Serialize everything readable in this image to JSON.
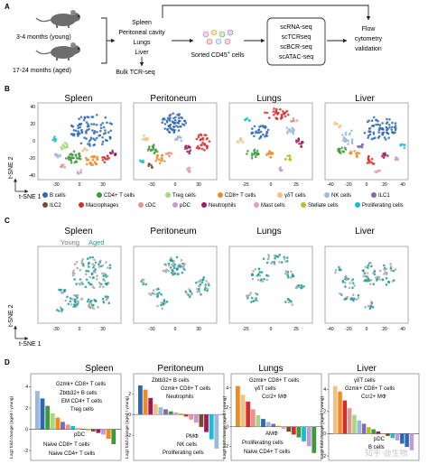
{
  "panels": {
    "A": "A",
    "B": "B",
    "C": "C",
    "D": "D"
  },
  "panel_a": {
    "mouse_young": "3-4 months (young)",
    "mouse_aged": "17-24 months (aged)",
    "tissues": [
      "Spleen",
      "Peritoneal cavity",
      "Lungs",
      "Liver"
    ],
    "bulk": "Bulk TCR-seq",
    "sorted_prefix": "Sorted CD45",
    "sorted_sup": "+",
    "sorted_suffix": " cells",
    "seq": [
      "scRNA-seq",
      "scTCRseq",
      "scBCR-seq",
      "scATAC-seq"
    ],
    "flow": [
      "Flow",
      "cytometry",
      "validation"
    ]
  },
  "tsne": {
    "ylabel": "t-SNE 2",
    "xlabel": "t-SNE 1"
  },
  "tissues": [
    "Spleen",
    "Peritoneum",
    "Lungs",
    "Liver"
  ],
  "axis_ticks": {
    "spleen_x": [
      "-30",
      "0",
      "30"
    ],
    "spleen_y": [
      "40",
      "20",
      "0",
      "-20",
      "-40"
    ],
    "peritoneum_x": [
      "-30",
      "0",
      "30"
    ],
    "lungs_x": [
      "-25",
      "0",
      "25"
    ],
    "liver_x": [
      "-40",
      "-20",
      "0",
      "20",
      "40"
    ],
    "spleen_c_x": [
      "-30",
      "0",
      "30"
    ],
    "peritoneum_c_x": [
      "-30",
      "0",
      "30"
    ],
    "lungs_c_x": [
      "-25",
      "0",
      "25"
    ],
    "liver_c_x": [
      "-40",
      "-20",
      "0",
      "20",
      "40"
    ]
  },
  "legend_b": [
    {
      "label": "B cells",
      "color": "#2f67b5"
    },
    {
      "label": "CD4+ T cells",
      "color": "#3c9a3a"
    },
    {
      "label": "Treg cells",
      "color": "#a6d77f"
    },
    {
      "label": "CD8+ T cells",
      "color": "#f08a24"
    },
    {
      "label": "γδT cells",
      "color": "#f6bf82"
    },
    {
      "label": "NK cells",
      "color": "#9ab9dc"
    },
    {
      "label": "ILC1",
      "color": "#7f6ab0"
    },
    {
      "label": "ILC2",
      "color": "#7a4a2a"
    },
    {
      "label": "Macrophages",
      "color": "#d72c2c"
    },
    {
      "label": "cDC",
      "color": "#e9928f"
    },
    {
      "label": "pDC",
      "color": "#c39bd3"
    },
    {
      "label": "Neutrophils",
      "color": "#a01a5a"
    },
    {
      "label": "Mast cells",
      "color": "#e59ac2"
    },
    {
      "label": "Stellate cells",
      "color": "#bcbd22"
    },
    {
      "label": "Proliferating cells",
      "color": "#17becf"
    }
  ],
  "legend_c": {
    "young": "Young",
    "aged": "Aged",
    "young_color": "#a8a8a8",
    "aged_color": "#1b9c9c"
  },
  "panel_d": {
    "ylabel": "Log2 fold change (aged / young)",
    "y_ticks": [
      "4",
      "2",
      "0",
      "-2"
    ],
    "annotations": {
      "spleen": [
        "Gzmk+ CD8+ T cells",
        "Zbtb32+ B cells",
        "EM CD4+ T cells",
        "Treg cells",
        "pDC",
        "Naive CD8+ T cells",
        "Naive CD4+ T cells"
      ],
      "peritoneum": [
        "Zbtb32+ B cells",
        "Gzmk+ CD8+ T cells",
        "Neutrophils",
        "PMΦ",
        "NK cells",
        "Proliferating cells"
      ],
      "lungs": [
        "Gzmk+ CD8+ T cells",
        "γδT cells",
        "Ccr2+ MΦ",
        "AMΦ",
        "Proliferating cells",
        "Naive CD4+ T cells"
      ],
      "liver": [
        "γδT cells",
        "Gzmk+ CD8+ T cells",
        "Ccr2+ MΦ",
        "pDC",
        "B cells"
      ]
    }
  },
  "chart_data": [
    {
      "type": "bar",
      "title": "Spleen",
      "ylabel": "Log2 fold change (aged / young)",
      "ylim": [
        -2.5,
        4.8
      ],
      "values": [
        3.6,
        2.9,
        2.2,
        1.5,
        1.1,
        0.7,
        0.45,
        0.3,
        0.15,
        0.05,
        -0.1,
        -0.2,
        -0.35,
        -0.5,
        -0.9,
        -1.4
      ],
      "colors": [
        "#9ab9dc",
        "#2f67b5",
        "#3c9a3a",
        "#a6d77f",
        "#f08a24",
        "#7f6ab0",
        "#e9928f",
        "#17becf",
        "#f6bf82",
        "#d72c2c",
        "#bcbd22",
        "#7a4a2a",
        "#a01a5a",
        "#c39bd3",
        "#f08a24",
        "#3c9a3a"
      ]
    },
    {
      "type": "bar",
      "title": "Peritoneum",
      "ylabel": "Log2 fold change (aged / young)",
      "ylim": [
        -4.0,
        3.5
      ],
      "values": [
        2.8,
        2.4,
        1.6,
        1.0,
        0.7,
        0.5,
        0.3,
        0.2,
        0.1,
        -0.2,
        -0.5,
        -0.8,
        -1.2,
        -1.7,
        -2.4,
        -3.3
      ],
      "colors": [
        "#2f67b5",
        "#f08a24",
        "#a01a5a",
        "#f6bf82",
        "#9ab9dc",
        "#7f6ab0",
        "#3c9a3a",
        "#e59ac2",
        "#bcbd22",
        "#d72c2c",
        "#e9928f",
        "#c39bd3",
        "#7a4a2a",
        "#a01a5a",
        "#17becf",
        "#9ab9dc"
      ]
    },
    {
      "type": "bar",
      "title": "Lungs",
      "ylabel": "Log2 fold change (aged / young)",
      "ylim": [
        -3.0,
        5.0
      ],
      "values": [
        4.2,
        3.3,
        2.6,
        1.8,
        1.2,
        0.8,
        0.5,
        0.3,
        0.1,
        -0.2,
        -0.5,
        -0.8,
        -1.1,
        -1.5,
        -2.0,
        -2.7
      ],
      "colors": [
        "#f08a24",
        "#f6bf82",
        "#d72c2c",
        "#e9928f",
        "#a6d77f",
        "#2f67b5",
        "#9ab9dc",
        "#7f6ab0",
        "#bcbd22",
        "#e59ac2",
        "#7a4a2a",
        "#d72c2c",
        "#3c9a3a",
        "#17becf",
        "#c39bd3",
        "#3c9a3a"
      ]
    },
    {
      "type": "bar",
      "title": "Liver",
      "ylabel": "Log2 fold change (aged / young)",
      "ylim": [
        -2.0,
        5.0
      ],
      "values": [
        4.3,
        3.8,
        3.0,
        2.3,
        1.7,
        1.2,
        0.9,
        0.6,
        0.4,
        0.2,
        0.0,
        -0.2,
        -0.4,
        -0.6,
        -0.9,
        -1.2,
        -1.5
      ],
      "colors": [
        "#f6bf82",
        "#f08a24",
        "#d72c2c",
        "#e9928f",
        "#a6d77f",
        "#9ab9dc",
        "#7f6ab0",
        "#bcbd22",
        "#3c9a3a",
        "#a01a5a",
        "#e59ac2",
        "#7a4a2a",
        "#17becf",
        "#c39bd3",
        "#2f67b5",
        "#2f67b5",
        "#c39bd3"
      ]
    }
  ],
  "watermark": "知乎 @生物"
}
